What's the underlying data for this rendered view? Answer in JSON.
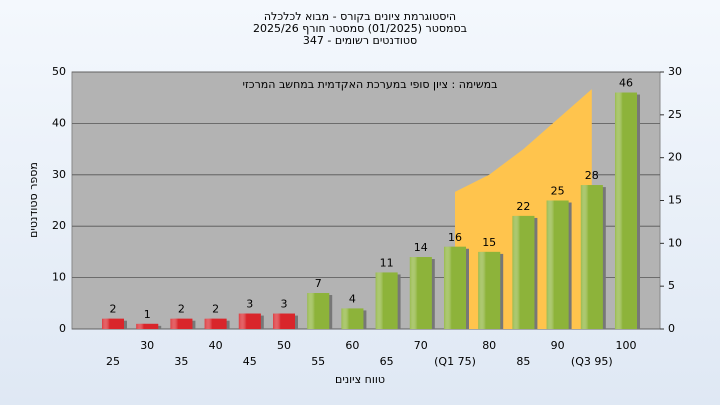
{
  "chart_data": {
    "type": "bar",
    "title": "היסטוגרמת ציונים בקורס - מבוא לכלכלה",
    "subtitle": "בסמסטר (01/2025) סמסטר חורף 2025/26",
    "subtitle2": "סטודנטים רשומים - 347",
    "annotation": "במשימה : ציון סופי במערכת האקדמית במחשב המרכזי",
    "x_label": "טווח ציונים",
    "y_label": "מספר סטודנטים",
    "categories": [
      "25",
      "30",
      "35",
      "40",
      "45",
      "50",
      "55",
      "60",
      "65",
      "70",
      "(Q1 75)",
      "80",
      "85",
      "90",
      "(Q3 95)",
      "100"
    ],
    "series": [
      {
        "type": "bar",
        "colors": [
          "#d9262b",
          "#d9262b",
          "#d9262b",
          "#d9262b",
          "#d9262b",
          "#d9262b",
          "#8db33a",
          "#8db33a",
          "#8db33a",
          "#8db33a",
          "#8db33a",
          "#8db33a",
          "#8db33a",
          "#8db33a",
          "#8db33a",
          "#8db33a"
        ],
        "values": [
          2,
          1,
          2,
          2,
          3,
          3,
          7,
          4,
          11,
          14,
          16,
          15,
          22,
          25,
          28,
          46
        ]
      },
      {
        "type": "area",
        "color": "#ffc44d",
        "axis": "y2",
        "values": [
          null,
          null,
          null,
          null,
          null,
          null,
          null,
          null,
          null,
          null,
          16,
          18,
          21,
          24.5,
          28,
          null
        ]
      }
    ],
    "ylim": [
      0,
      50
    ],
    "yticks": [
      0,
      10,
      20,
      30,
      40,
      50
    ],
    "y2lim": [
      0,
      30
    ],
    "y2ticks": [
      0,
      5,
      10,
      15,
      20,
      25,
      30
    ],
    "grid": true
  }
}
